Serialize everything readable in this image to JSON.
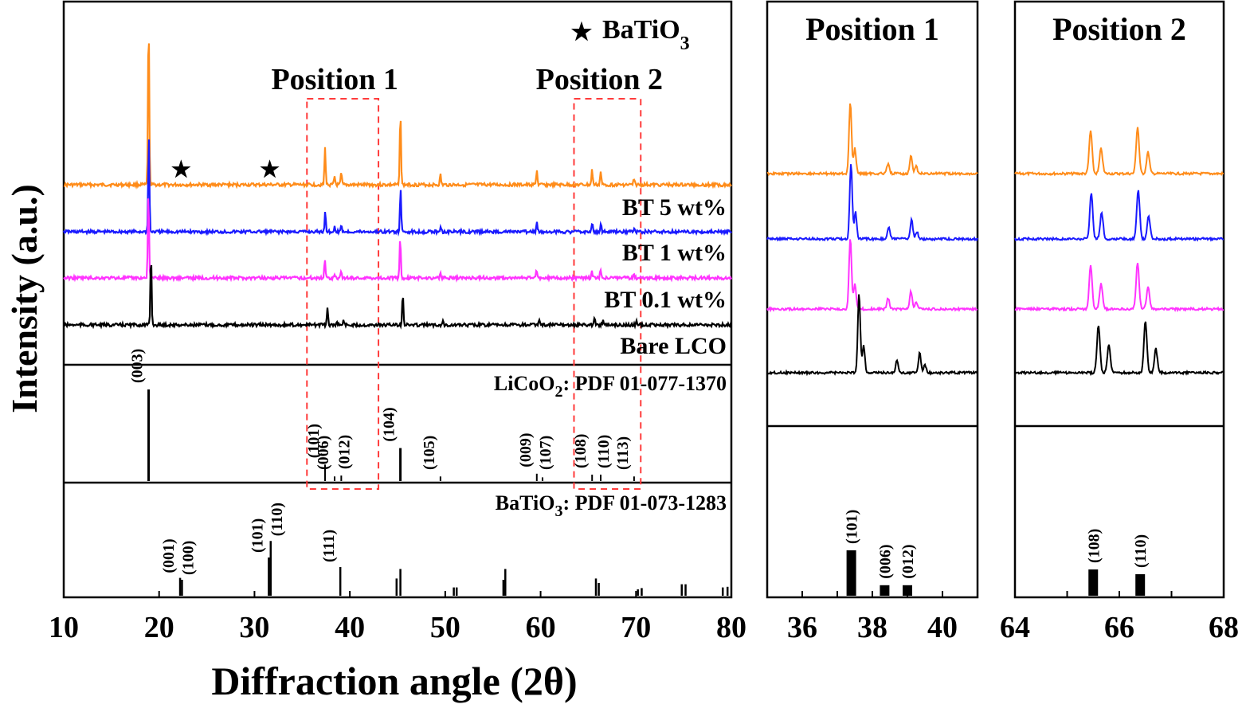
{
  "chart_data": {
    "type": "line",
    "y_label": "Intensity (a.u.)",
    "x_label": "Diffraction angle (2θ)",
    "legend_star": "★",
    "legend_text": "BaTiO",
    "legend_sub": "3",
    "main": {
      "xlim": [
        10,
        80
      ],
      "xticks": [
        "10",
        "20",
        "30",
        "40",
        "50",
        "60",
        "70",
        "80"
      ],
      "region_labels": [
        {
          "text": "Position 1",
          "range": [
            35.5,
            43
          ]
        },
        {
          "text": "Position 2",
          "range": [
            63.5,
            70.5
          ]
        }
      ],
      "series": [
        {
          "name": "BT 5 wt%",
          "color": "#ff8c1a"
        },
        {
          "name": "BT 1 wt%",
          "color": "#1a1aff"
        },
        {
          "name": "BT 0.1 wt%",
          "color": "#ff33ff"
        },
        {
          "name": "Bare LCO",
          "color": "#000000"
        }
      ],
      "peaks": [
        {
          "x": 18.9,
          "h": 1.0
        },
        {
          "x": 37.4,
          "h": 0.22
        },
        {
          "x": 38.4,
          "h": 0.05
        },
        {
          "x": 39.1,
          "h": 0.07
        },
        {
          "x": 45.3,
          "h": 0.45
        },
        {
          "x": 49.5,
          "h": 0.06
        },
        {
          "x": 59.6,
          "h": 0.09
        },
        {
          "x": 65.4,
          "h": 0.09
        },
        {
          "x": 66.3,
          "h": 0.08
        },
        {
          "x": 69.8,
          "h": 0.04
        }
      ],
      "bto_stars": [
        22.3,
        31.6
      ],
      "lco_ref": {
        "label_main": "LiCoO",
        "label_sub": "2",
        "label_rest": ": PDF 01-077-1370",
        "lines": [
          {
            "x": 18.9,
            "h": 1.0,
            "hkl": "(003)"
          },
          {
            "x": 37.4,
            "h": 0.18,
            "hkl": "(101)"
          },
          {
            "x": 38.4,
            "h": 0.05,
            "hkl": "(006)"
          },
          {
            "x": 39.1,
            "h": 0.06,
            "hkl": "(012)"
          },
          {
            "x": 45.3,
            "h": 0.36,
            "hkl": "(104)"
          },
          {
            "x": 49.5,
            "h": 0.05,
            "hkl": "(105)"
          },
          {
            "x": 59.6,
            "h": 0.08,
            "hkl": "(009)"
          },
          {
            "x": 60.2,
            "h": 0.04,
            "hkl": "(107)"
          },
          {
            "x": 65.4,
            "h": 0.07,
            "hkl": "(108)"
          },
          {
            "x": 66.3,
            "h": 0.07,
            "hkl": "(110)"
          },
          {
            "x": 69.8,
            "h": 0.05,
            "hkl": "(113)"
          }
        ]
      },
      "bto_ref": {
        "label_main": "BaTiO",
        "label_sub": "3",
        "label_rest": ": PDF 01-073-1283",
        "lines": [
          {
            "x": 22.2,
            "h": 0.28,
            "hkl": "(001)"
          },
          {
            "x": 22.4,
            "h": 0.25,
            "hkl": "(100)"
          },
          {
            "x": 31.5,
            "h": 0.6,
            "hkl": "(101)"
          },
          {
            "x": 31.7,
            "h": 0.86,
            "hkl": "(110)"
          },
          {
            "x": 39.0,
            "h": 0.45,
            "hkl": "(111)"
          },
          {
            "x": 44.9,
            "h": 0.27,
            "hkl": ""
          },
          {
            "x": 45.3,
            "h": 0.42,
            "hkl": ""
          },
          {
            "x": 50.9,
            "h": 0.13,
            "hkl": ""
          },
          {
            "x": 51.2,
            "h": 0.13,
            "hkl": ""
          },
          {
            "x": 56.1,
            "h": 0.25,
            "hkl": ""
          },
          {
            "x": 56.3,
            "h": 0.42,
            "hkl": ""
          },
          {
            "x": 65.8,
            "h": 0.27,
            "hkl": ""
          },
          {
            "x": 66.1,
            "h": 0.2,
            "hkl": ""
          },
          {
            "x": 70.2,
            "h": 0.1,
            "hkl": ""
          },
          {
            "x": 70.6,
            "h": 0.12,
            "hkl": ""
          },
          {
            "x": 74.8,
            "h": 0.18,
            "hkl": ""
          },
          {
            "x": 75.2,
            "h": 0.18,
            "hkl": ""
          },
          {
            "x": 79.1,
            "h": 0.13,
            "hkl": ""
          },
          {
            "x": 79.6,
            "h": 0.14,
            "hkl": ""
          }
        ]
      }
    },
    "zoom1": {
      "title": "Position 1",
      "xlim": [
        35,
        41
      ],
      "xticks": [
        "36",
        "38",
        "40"
      ],
      "peaks": [
        {
          "x": 37.37,
          "h": 1.0
        },
        {
          "x": 37.5,
          "h": 0.35
        },
        {
          "x": 38.45,
          "h": 0.15
        },
        {
          "x": 39.1,
          "h": 0.25
        },
        {
          "x": 39.25,
          "h": 0.1
        }
      ],
      "ref_lines": [
        {
          "x": 37.4,
          "h": 0.95,
          "hkl": "(101)"
        },
        {
          "x": 38.35,
          "h": 0.22,
          "hkl": "(006)"
        },
        {
          "x": 39.0,
          "h": 0.22,
          "hkl": "(012)"
        }
      ]
    },
    "zoom2": {
      "title": "Position 2",
      "xlim": [
        64,
        68
      ],
      "xticks": [
        "64",
        "66",
        "68"
      ],
      "peaks": [
        {
          "x": 65.45,
          "h": 0.6
        },
        {
          "x": 65.65,
          "h": 0.35
        },
        {
          "x": 66.35,
          "h": 0.65
        },
        {
          "x": 66.55,
          "h": 0.3
        }
      ],
      "ref_lines": [
        {
          "x": 65.5,
          "h": 0.55,
          "hkl": "(108)"
        },
        {
          "x": 66.4,
          "h": 0.45,
          "hkl": "(110)"
        }
      ]
    }
  }
}
